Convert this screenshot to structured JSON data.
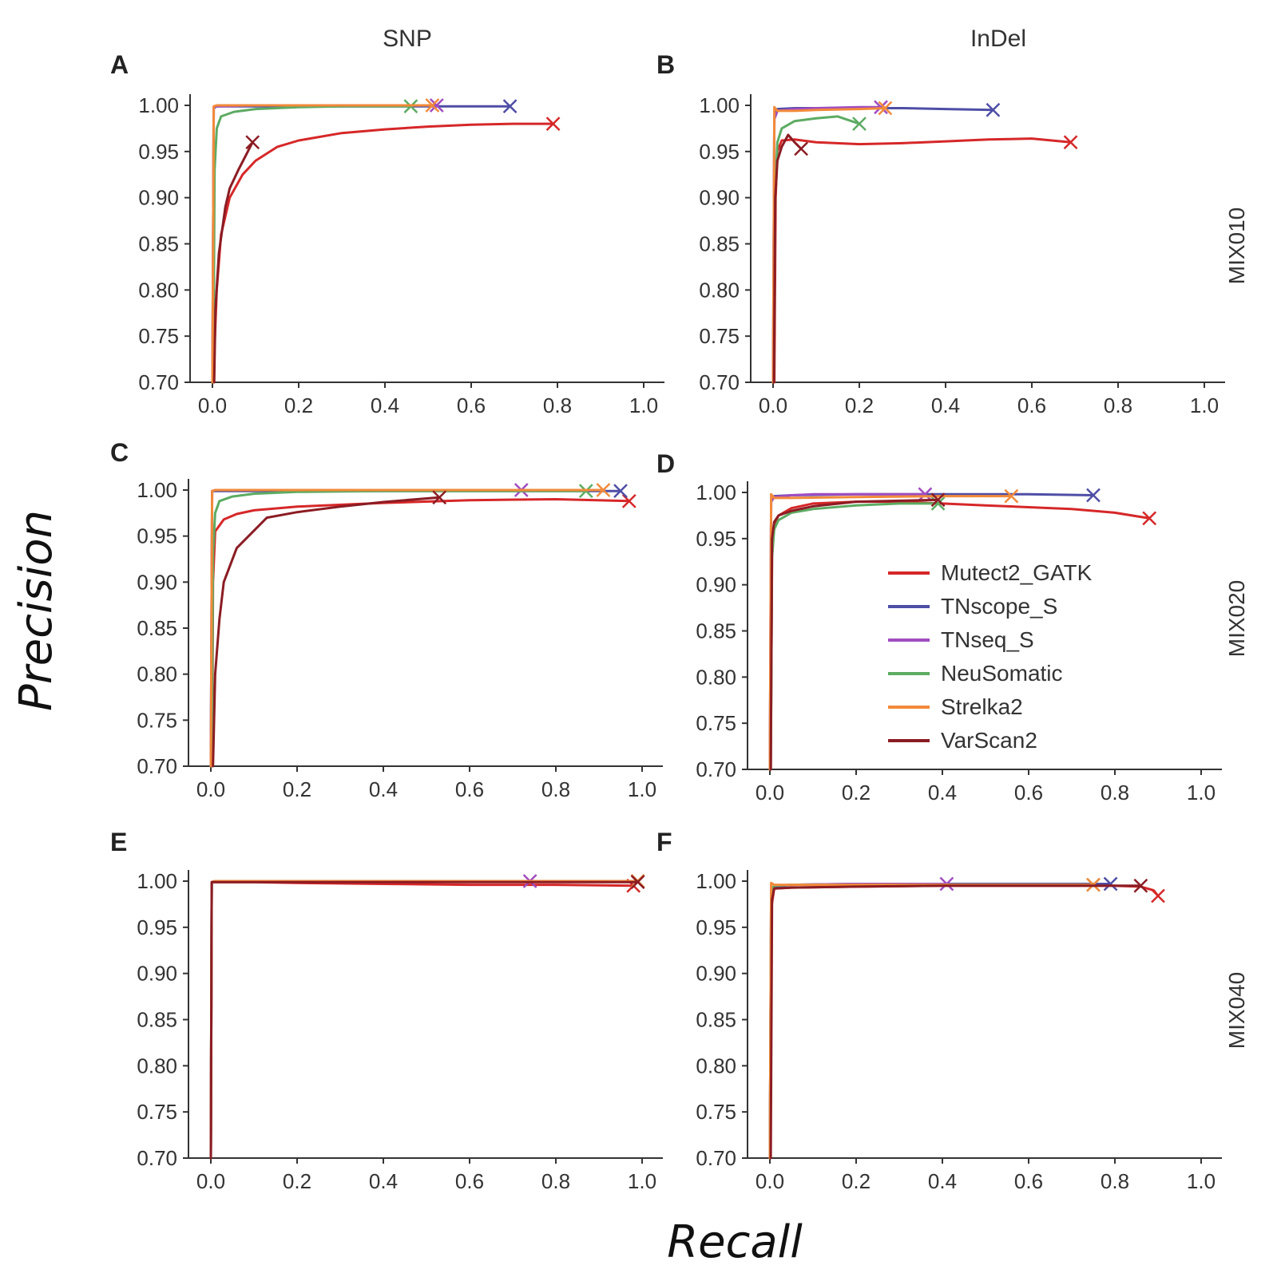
{
  "figure": {
    "column_titles": [
      "SNP",
      "InDel"
    ],
    "row_labels": [
      "MIX010",
      "MIX020",
      "MIX040"
    ],
    "ylabel": "Precision",
    "xlabel": "Recall",
    "legend": [
      {
        "name": "Mutect2_GATK",
        "color": "#d62728"
      },
      {
        "name": "TNscope_S",
        "color": "#4e4ea6"
      },
      {
        "name": "TNseq_S",
        "color": "#a04cc0"
      },
      {
        "name": "NeuSomatic",
        "color": "#5cab62"
      },
      {
        "name": "Strelka2",
        "color": "#f28a3a"
      },
      {
        "name": "VarScan2",
        "color": "#8b1c23"
      }
    ],
    "legend_placement": "inside panel D, right-center"
  },
  "chart_data": [
    {
      "panel": "A",
      "type": "line",
      "xlim": [
        0,
        1
      ],
      "ylim": [
        0.7,
        1.0
      ],
      "xticks": [
        "0.0",
        "0.2",
        "0.4",
        "0.6",
        "0.8",
        "1.0"
      ],
      "yticks": [
        "0.70",
        "0.75",
        "0.80",
        "0.85",
        "0.90",
        "0.95",
        "1.00"
      ],
      "series": [
        {
          "name": "Mutect2_GATK",
          "x": [
            0.003,
            0.005,
            0.01,
            0.02,
            0.04,
            0.07,
            0.1,
            0.15,
            0.2,
            0.3,
            0.4,
            0.5,
            0.6,
            0.7,
            0.79
          ],
          "y": [
            0.7,
            0.74,
            0.8,
            0.86,
            0.9,
            0.925,
            0.94,
            0.955,
            0.962,
            0.97,
            0.974,
            0.977,
            0.979,
            0.98,
            0.98
          ]
        },
        {
          "name": "TNscope_S",
          "x": [
            0.0,
            0.003,
            0.01,
            0.05,
            0.2,
            0.4,
            0.6,
            0.69
          ],
          "y": [
            0.7,
            0.997,
            0.999,
            0.999,
            0.999,
            0.999,
            0.999,
            0.999
          ]
        },
        {
          "name": "TNseq_S",
          "x": [
            0.0,
            0.003,
            0.01,
            0.1,
            0.3,
            0.52
          ],
          "y": [
            0.7,
            0.998,
            0.999,
            1.0,
            1.0,
            1.0
          ]
        },
        {
          "name": "NeuSomatic",
          "x": [
            0.002,
            0.005,
            0.01,
            0.02,
            0.05,
            0.1,
            0.2,
            0.3,
            0.46
          ],
          "y": [
            0.7,
            0.93,
            0.975,
            0.988,
            0.993,
            0.996,
            0.998,
            0.999,
            0.999
          ]
        },
        {
          "name": "Strelka2",
          "x": [
            0.0,
            0.003,
            0.01,
            0.1,
            0.3,
            0.51
          ],
          "y": [
            0.7,
            0.999,
            1.0,
            1.0,
            1.0,
            1.0
          ]
        },
        {
          "name": "VarScan2",
          "x": [
            0.004,
            0.007,
            0.015,
            0.03,
            0.04,
            0.06,
            0.08,
            0.093
          ],
          "y": [
            0.7,
            0.78,
            0.84,
            0.89,
            0.91,
            0.93,
            0.948,
            0.96
          ]
        }
      ]
    },
    {
      "panel": "B",
      "type": "line",
      "xlim": [
        0,
        1
      ],
      "ylim": [
        0.7,
        1.0
      ],
      "xticks": [
        "0.0",
        "0.2",
        "0.4",
        "0.6",
        "0.8",
        "1.0"
      ],
      "yticks": [
        "0.70",
        "0.75",
        "0.80",
        "0.85",
        "0.90",
        "0.95",
        "1.00"
      ],
      "series": [
        {
          "name": "Mutect2_GATK",
          "x": [
            0.003,
            0.006,
            0.01,
            0.02,
            0.05,
            0.1,
            0.2,
            0.3,
            0.4,
            0.5,
            0.6,
            0.69
          ],
          "y": [
            0.7,
            0.9,
            0.95,
            0.962,
            0.963,
            0.96,
            0.958,
            0.959,
            0.961,
            0.963,
            0.964,
            0.96
          ]
        },
        {
          "name": "TNscope_S",
          "x": [
            0.0,
            0.003,
            0.01,
            0.05,
            0.1,
            0.2,
            0.3,
            0.4,
            0.51
          ],
          "y": [
            0.7,
            0.99,
            0.996,
            0.997,
            0.997,
            0.997,
            0.997,
            0.996,
            0.995
          ]
        },
        {
          "name": "TNseq_S",
          "x": [
            0.0,
            0.003,
            0.01,
            0.05,
            0.1,
            0.2,
            0.25
          ],
          "y": [
            0.7,
            0.985,
            0.994,
            0.996,
            0.997,
            0.998,
            0.998
          ]
        },
        {
          "name": "NeuSomatic",
          "x": [
            0.002,
            0.005,
            0.01,
            0.02,
            0.05,
            0.1,
            0.15,
            0.2
          ],
          "y": [
            0.7,
            0.9,
            0.96,
            0.975,
            0.983,
            0.986,
            0.988,
            0.98
          ]
        },
        {
          "name": "Strelka2",
          "x": [
            0.0,
            0.003,
            0.01,
            0.05,
            0.1,
            0.2,
            0.26
          ],
          "y": [
            0.7,
            0.998,
            0.994,
            0.994,
            0.995,
            0.996,
            0.997
          ]
        },
        {
          "name": "VarScan2",
          "x": [
            0.002,
            0.005,
            0.01,
            0.02,
            0.035,
            0.05,
            0.065
          ],
          "y": [
            0.7,
            0.9,
            0.94,
            0.955,
            0.968,
            0.96,
            0.953
          ]
        }
      ]
    },
    {
      "panel": "C",
      "type": "line",
      "xlim": [
        0,
        1
      ],
      "ylim": [
        0.7,
        1.0
      ],
      "xticks": [
        "0.0",
        "0.2",
        "0.4",
        "0.6",
        "0.8",
        "1.0"
      ],
      "yticks": [
        "0.70",
        "0.75",
        "0.80",
        "0.85",
        "0.90",
        "0.95",
        "1.00"
      ],
      "series": [
        {
          "name": "Mutect2_GATK",
          "x": [
            0.003,
            0.005,
            0.01,
            0.03,
            0.06,
            0.1,
            0.2,
            0.4,
            0.6,
            0.8,
            0.97
          ],
          "y": [
            0.7,
            0.9,
            0.955,
            0.968,
            0.974,
            0.978,
            0.982,
            0.986,
            0.989,
            0.99,
            0.988
          ]
        },
        {
          "name": "TNscope_S",
          "x": [
            0.0,
            0.003,
            0.01,
            0.05,
            0.2,
            0.4,
            0.6,
            0.8,
            0.95
          ],
          "y": [
            0.7,
            0.999,
            0.999,
            0.999,
            0.999,
            0.999,
            0.999,
            0.999,
            0.999
          ]
        },
        {
          "name": "TNseq_S",
          "x": [
            0.0,
            0.003,
            0.01,
            0.1,
            0.3,
            0.5,
            0.72
          ],
          "y": [
            0.7,
            0.999,
            1.0,
            1.0,
            1.0,
            1.0,
            1.0
          ]
        },
        {
          "name": "NeuSomatic",
          "x": [
            0.002,
            0.005,
            0.01,
            0.02,
            0.05,
            0.1,
            0.2,
            0.4,
            0.6,
            0.87
          ],
          "y": [
            0.7,
            0.93,
            0.975,
            0.988,
            0.993,
            0.996,
            0.998,
            0.999,
            0.999,
            0.999
          ]
        },
        {
          "name": "Strelka2",
          "x": [
            0.0,
            0.003,
            0.01,
            0.1,
            0.3,
            0.6,
            0.91
          ],
          "y": [
            0.7,
            0.999,
            1.0,
            1.0,
            1.0,
            1.0,
            1.0
          ]
        },
        {
          "name": "VarScan2",
          "x": [
            0.005,
            0.01,
            0.02,
            0.03,
            0.06,
            0.13,
            0.2,
            0.3,
            0.4,
            0.53
          ],
          "y": [
            0.7,
            0.8,
            0.86,
            0.9,
            0.937,
            0.97,
            0.976,
            0.982,
            0.987,
            0.992
          ]
        }
      ]
    },
    {
      "panel": "D",
      "type": "line",
      "xlim": [
        0,
        1
      ],
      "ylim": [
        0.7,
        1.0
      ],
      "xticks": [
        "0.0",
        "0.2",
        "0.4",
        "0.6",
        "0.8",
        "1.0"
      ],
      "yticks": [
        "0.70",
        "0.75",
        "0.80",
        "0.85",
        "0.90",
        "0.95",
        "1.00"
      ],
      "series": [
        {
          "name": "Mutect2_GATK",
          "x": [
            0.002,
            0.005,
            0.01,
            0.02,
            0.05,
            0.1,
            0.2,
            0.3,
            0.4,
            0.5,
            0.6,
            0.7,
            0.8,
            0.88
          ],
          "y": [
            0.7,
            0.93,
            0.965,
            0.975,
            0.983,
            0.988,
            0.99,
            0.99,
            0.988,
            0.986,
            0.984,
            0.982,
            0.978,
            0.972
          ]
        },
        {
          "name": "TNscope_S",
          "x": [
            0.0,
            0.003,
            0.01,
            0.05,
            0.2,
            0.4,
            0.6,
            0.75
          ],
          "y": [
            0.7,
            0.99,
            0.996,
            0.997,
            0.998,
            0.998,
            0.998,
            0.997
          ]
        },
        {
          "name": "TNseq_S",
          "x": [
            0.0,
            0.003,
            0.01,
            0.05,
            0.1,
            0.2,
            0.36
          ],
          "y": [
            0.7,
            0.99,
            0.995,
            0.997,
            0.998,
            0.998,
            0.998
          ]
        },
        {
          "name": "NeuSomatic",
          "x": [
            0.002,
            0.005,
            0.01,
            0.02,
            0.05,
            0.1,
            0.2,
            0.3,
            0.39
          ],
          "y": [
            0.7,
            0.93,
            0.96,
            0.97,
            0.978,
            0.982,
            0.986,
            0.988,
            0.988
          ]
        },
        {
          "name": "Strelka2",
          "x": [
            0.0,
            0.003,
            0.01,
            0.05,
            0.2,
            0.4,
            0.56
          ],
          "y": [
            0.7,
            0.998,
            0.994,
            0.994,
            0.995,
            0.996,
            0.996
          ]
        },
        {
          "name": "VarScan2",
          "x": [
            0.002,
            0.005,
            0.01,
            0.02,
            0.05,
            0.1,
            0.2,
            0.3,
            0.39
          ],
          "y": [
            0.7,
            0.95,
            0.968,
            0.975,
            0.98,
            0.985,
            0.99,
            0.991,
            0.992
          ]
        }
      ]
    },
    {
      "panel": "E",
      "type": "line",
      "xlim": [
        0,
        1
      ],
      "ylim": [
        0.7,
        1.0
      ],
      "xticks": [
        "0.0",
        "0.2",
        "0.4",
        "0.6",
        "0.8",
        "1.0"
      ],
      "yticks": [
        "0.70",
        "0.75",
        "0.80",
        "0.85",
        "0.90",
        "0.95",
        "1.00"
      ],
      "series": [
        {
          "name": "Mutect2_GATK",
          "x": [
            0.0,
            0.002,
            0.01,
            0.1,
            0.2,
            0.4,
            0.6,
            0.8,
            0.98
          ],
          "y": [
            0.7,
            0.999,
            0.999,
            0.999,
            0.998,
            0.997,
            0.996,
            0.996,
            0.995
          ]
        },
        {
          "name": "TNscope_S",
          "x": [
            0.0,
            0.002,
            0.01,
            0.2,
            0.5,
            0.8,
            0.99
          ],
          "y": [
            0.7,
            0.999,
            1.0,
            1.0,
            1.0,
            1.0,
            1.0
          ]
        },
        {
          "name": "TNseq_S",
          "x": [
            0.0,
            0.002,
            0.01,
            0.2,
            0.5,
            0.74
          ],
          "y": [
            0.7,
            0.999,
            1.0,
            1.0,
            1.0,
            1.0
          ]
        },
        {
          "name": "NeuSomatic",
          "x": [
            0.0,
            0.002,
            0.01,
            0.2,
            0.5,
            0.8,
            0.99
          ],
          "y": [
            0.7,
            0.999,
            1.0,
            1.0,
            1.0,
            1.0,
            1.0
          ]
        },
        {
          "name": "Strelka2",
          "x": [
            0.0,
            0.002,
            0.01,
            0.2,
            0.5,
            0.8,
            0.99
          ],
          "y": [
            0.7,
            0.999,
            1.0,
            1.0,
            1.0,
            1.0,
            1.0
          ]
        },
        {
          "name": "VarScan2",
          "x": [
            0.0,
            0.002,
            0.01,
            0.2,
            0.5,
            0.8,
            0.99
          ],
          "y": [
            0.7,
            0.999,
            0.999,
            0.999,
            0.999,
            0.999,
            0.999
          ]
        }
      ]
    },
    {
      "panel": "F",
      "type": "line",
      "xlim": [
        0,
        1
      ],
      "ylim": [
        0.7,
        1.0
      ],
      "xticks": [
        "0.0",
        "0.2",
        "0.4",
        "0.6",
        "0.8",
        "1.0"
      ],
      "yticks": [
        "0.70",
        "0.75",
        "0.80",
        "0.85",
        "0.90",
        "0.95",
        "1.00"
      ],
      "series": [
        {
          "name": "Mutect2_GATK",
          "x": [
            0.0,
            0.003,
            0.01,
            0.05,
            0.2,
            0.4,
            0.6,
            0.8,
            0.86,
            0.89,
            0.9
          ],
          "y": [
            0.7,
            0.97,
            0.992,
            0.993,
            0.994,
            0.995,
            0.995,
            0.995,
            0.994,
            0.99,
            0.984
          ]
        },
        {
          "name": "TNscope_S",
          "x": [
            0.0,
            0.003,
            0.01,
            0.05,
            0.2,
            0.4,
            0.6,
            0.79
          ],
          "y": [
            0.7,
            0.98,
            0.994,
            0.996,
            0.997,
            0.997,
            0.997,
            0.997
          ]
        },
        {
          "name": "TNseq_S",
          "x": [
            0.0,
            0.003,
            0.01,
            0.05,
            0.2,
            0.41
          ],
          "y": [
            0.7,
            0.99,
            0.995,
            0.996,
            0.997,
            0.997
          ]
        },
        {
          "name": "NeuSomatic",
          "x": [
            0.0,
            0.003,
            0.01,
            0.05,
            0.2,
            0.4,
            0.6,
            0.75
          ],
          "y": [
            0.7,
            0.99,
            0.995,
            0.996,
            0.996,
            0.996,
            0.996,
            0.996
          ]
        },
        {
          "name": "Strelka2",
          "x": [
            0.0,
            0.003,
            0.01,
            0.05,
            0.2,
            0.4,
            0.6,
            0.75
          ],
          "y": [
            0.7,
            0.998,
            0.996,
            0.996,
            0.996,
            0.996,
            0.996,
            0.996
          ]
        },
        {
          "name": "VarScan2",
          "x": [
            0.002,
            0.005,
            0.01,
            0.05,
            0.2,
            0.4,
            0.6,
            0.86
          ],
          "y": [
            0.7,
            0.98,
            0.992,
            0.993,
            0.994,
            0.995,
            0.995,
            0.995
          ]
        }
      ]
    }
  ]
}
